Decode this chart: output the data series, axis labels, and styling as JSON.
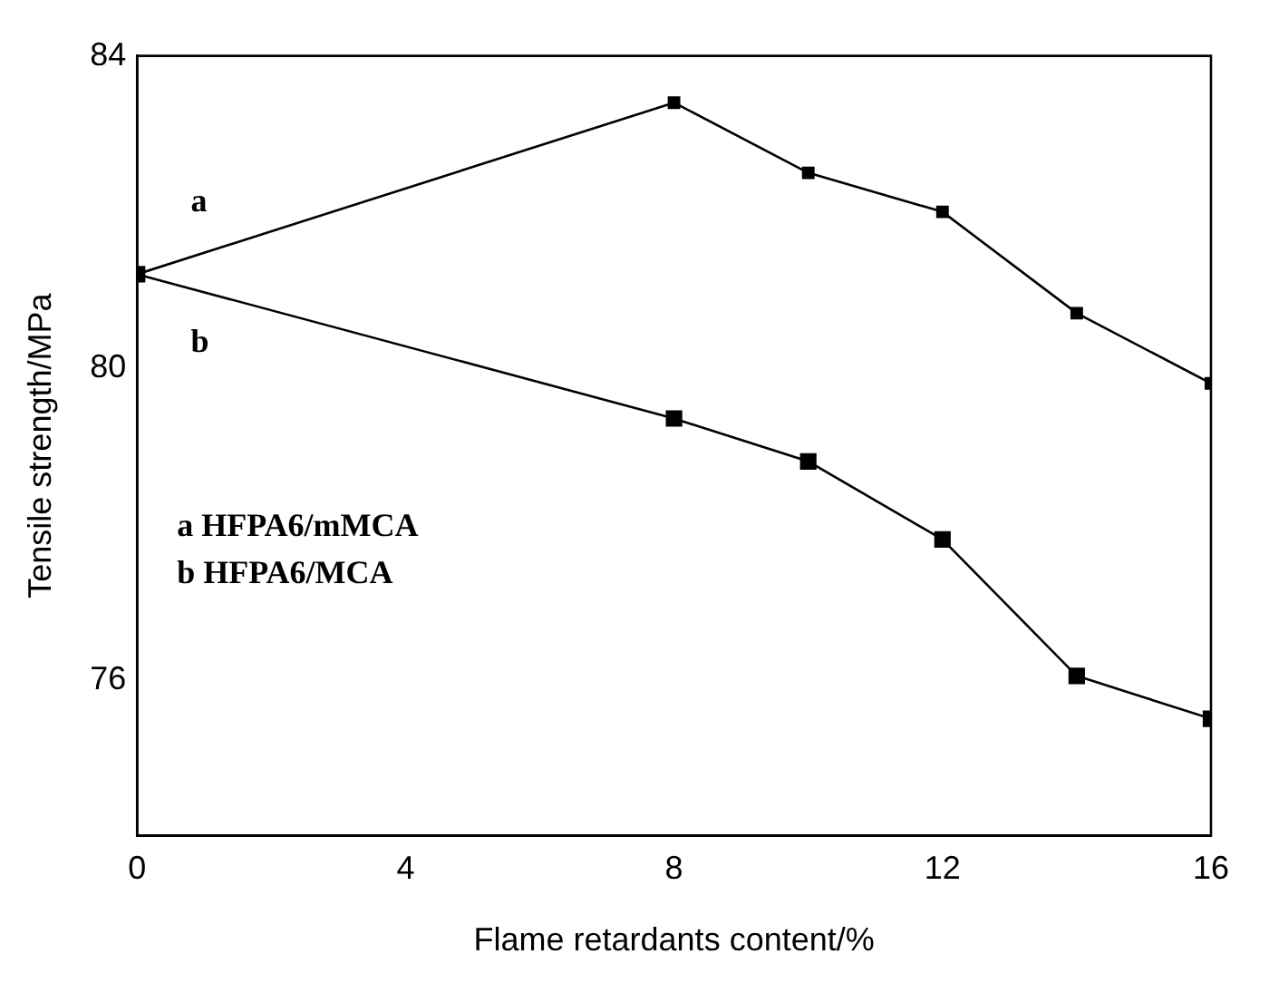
{
  "chart_data": {
    "type": "line",
    "xlabel": "Flame retardants content/%",
    "ylabel": "Tensile strength/MPa",
    "x": [
      0,
      8,
      10,
      12,
      14,
      16
    ],
    "series": [
      {
        "name": "a",
        "color": "#000000",
        "values": [
          81.2,
          83.4,
          82.5,
          82.0,
          80.7,
          79.8
        ]
      },
      {
        "name": "b",
        "color": "#000000",
        "values": [
          81.2,
          79.35,
          78.8,
          77.8,
          76.05,
          75.5
        ]
      }
    ],
    "xlim": [
      0,
      16
    ],
    "xticks": [
      0,
      4,
      8,
      12,
      16
    ],
    "ylim": [
      74,
      84
    ],
    "yticks": [
      76,
      80,
      84
    ],
    "marker": "square",
    "line_style": "solid",
    "grid": false,
    "legend": false,
    "annotations": [
      "a HFPA6/mMCA",
      "b HFPA6/MCA"
    ]
  }
}
